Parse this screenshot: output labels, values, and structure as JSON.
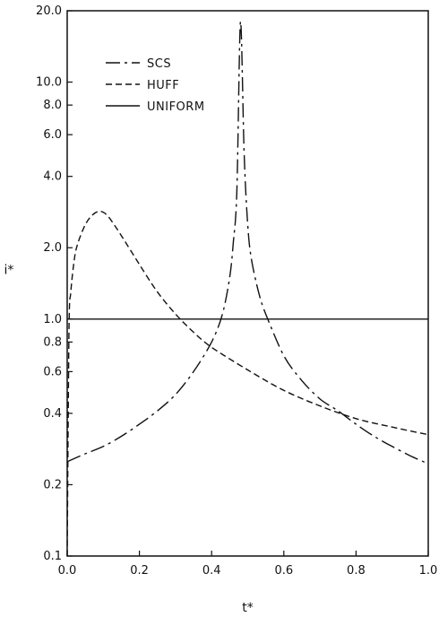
{
  "chart_data": {
    "type": "line",
    "title": "",
    "xlabel": "t*",
    "ylabel": "i*",
    "xlim": [
      0.0,
      1.0
    ],
    "ylim": [
      0.1,
      20.0
    ],
    "yscale": "log",
    "grid": false,
    "legend_position": "top-left",
    "x_ticks": [
      0.0,
      0.2,
      0.4,
      0.6,
      0.8,
      1.0
    ],
    "x_tick_labels": [
      "0.0",
      "0.2",
      "0.4",
      "0.6",
      "0.8",
      "1.0"
    ],
    "y_ticks": [
      0.1,
      0.2,
      0.4,
      0.6,
      0.8,
      1.0,
      2.0,
      4.0,
      6.0,
      8.0,
      10.0,
      20.0
    ],
    "y_tick_labels": [
      "0.1",
      "0.2",
      "0.4",
      "0.6",
      "0.8",
      "1.0",
      "2.0",
      "4.0",
      "6.0",
      "8.0",
      "10.0",
      "20.0"
    ],
    "series": [
      {
        "name": "SCS",
        "dash": "dashdot-long",
        "x": [
          0.0,
          0.05,
          0.1,
          0.15,
          0.2,
          0.25,
          0.3,
          0.35,
          0.4,
          0.43,
          0.45,
          0.46,
          0.47,
          0.48,
          0.49,
          0.5,
          0.51,
          0.53,
          0.55,
          0.6,
          0.65,
          0.7,
          0.75,
          0.8,
          0.85,
          0.9,
          0.95,
          1.0
        ],
        "y": [
          0.25,
          0.27,
          0.29,
          0.32,
          0.36,
          0.41,
          0.48,
          0.6,
          0.8,
          1.05,
          1.5,
          2.1,
          3.5,
          18.0,
          5.0,
          2.5,
          1.8,
          1.3,
          1.05,
          0.7,
          0.55,
          0.46,
          0.41,
          0.36,
          0.32,
          0.29,
          0.265,
          0.245
        ]
      },
      {
        "name": "HUFF",
        "dash": "dashed",
        "x": [
          0.0,
          0.005,
          0.01,
          0.02,
          0.03,
          0.05,
          0.07,
          0.09,
          0.11,
          0.13,
          0.15,
          0.2,
          0.25,
          0.3,
          0.35,
          0.4,
          0.5,
          0.6,
          0.7,
          0.8,
          0.9,
          1.0
        ],
        "y": [
          0.1,
          0.9,
          1.3,
          1.8,
          2.1,
          2.5,
          2.75,
          2.85,
          2.75,
          2.5,
          2.25,
          1.7,
          1.3,
          1.05,
          0.88,
          0.76,
          0.61,
          0.5,
          0.43,
          0.38,
          0.35,
          0.325
        ]
      },
      {
        "name": "UNIFORM",
        "dash": "solid",
        "x": [
          0.0,
          1.0
        ],
        "y": [
          1.0,
          1.0
        ]
      }
    ]
  }
}
